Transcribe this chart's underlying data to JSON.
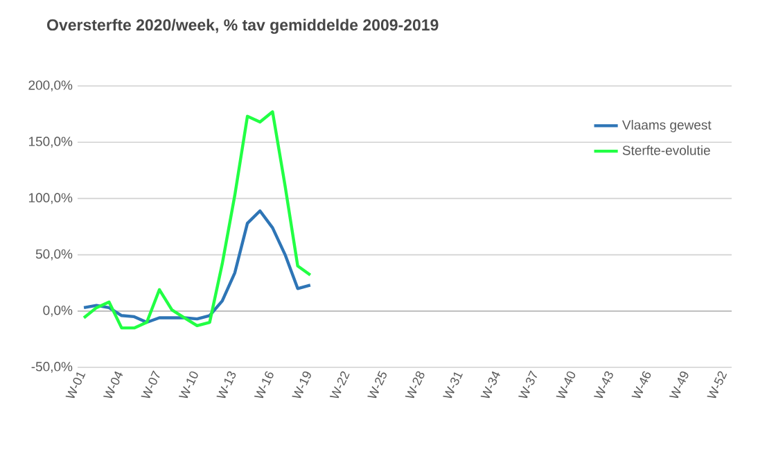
{
  "chart_data": {
    "type": "line",
    "title": "Oversterfte  2020/week, % tav gemiddelde 2009-2019",
    "categories": [
      "W-01",
      null,
      null,
      "W-04",
      null,
      null,
      "W-07",
      null,
      null,
      "W-10",
      null,
      null,
      "W-13",
      null,
      null,
      "W-16",
      null,
      null,
      "W-19",
      null,
      null,
      "W-22",
      null,
      null,
      "W-25",
      null,
      null,
      "W-28",
      null,
      null,
      "W-31",
      null,
      null,
      "W-34",
      null,
      null,
      "W-37",
      null,
      null,
      "W-40",
      null,
      null,
      "W-43",
      null,
      null,
      "W-46",
      null,
      null,
      "W-49",
      null,
      null,
      "W-52"
    ],
    "series": [
      {
        "name": "Vlaams gewest",
        "color": "#2e75b6",
        "values": [
          3,
          5,
          3,
          -4,
          -5,
          -10,
          -6,
          -6,
          -6,
          -7,
          -4,
          9,
          34,
          78,
          89,
          74,
          50,
          20,
          23,
          null,
          null,
          null,
          null,
          null,
          null,
          null,
          null,
          null,
          null,
          null,
          null,
          null,
          null,
          null,
          null,
          null,
          null,
          null,
          null,
          null,
          null,
          null,
          null,
          null,
          null,
          null,
          null,
          null,
          null,
          null,
          null,
          null
        ]
      },
      {
        "name": "Sterfte-evolutie",
        "color": "#22ff44",
        "values": [
          -6,
          3,
          8,
          -15,
          -15,
          -10,
          19,
          1,
          -6,
          -13,
          -10,
          42,
          103,
          173,
          168,
          177,
          111,
          40,
          32,
          null,
          null,
          null,
          null,
          null,
          null,
          null,
          null,
          null,
          null,
          null,
          null,
          null,
          null,
          null,
          null,
          null,
          null,
          null,
          null,
          null,
          null,
          null,
          null,
          null,
          null,
          null,
          null,
          null,
          null,
          null,
          null,
          null
        ]
      }
    ],
    "ylim": [
      -50,
      200
    ],
    "yticks": [
      {
        "value": -50,
        "label": "-50,0%"
      },
      {
        "value": 0,
        "label": "0,0%"
      },
      {
        "value": 50,
        "label": "50,0%"
      },
      {
        "value": 100,
        "label": "100,0%"
      },
      {
        "value": 150,
        "label": "150,0%"
      },
      {
        "value": 200,
        "label": "200,0%"
      }
    ],
    "grid": "y",
    "legend": "top right",
    "marker": "none",
    "line_style": "solid"
  }
}
